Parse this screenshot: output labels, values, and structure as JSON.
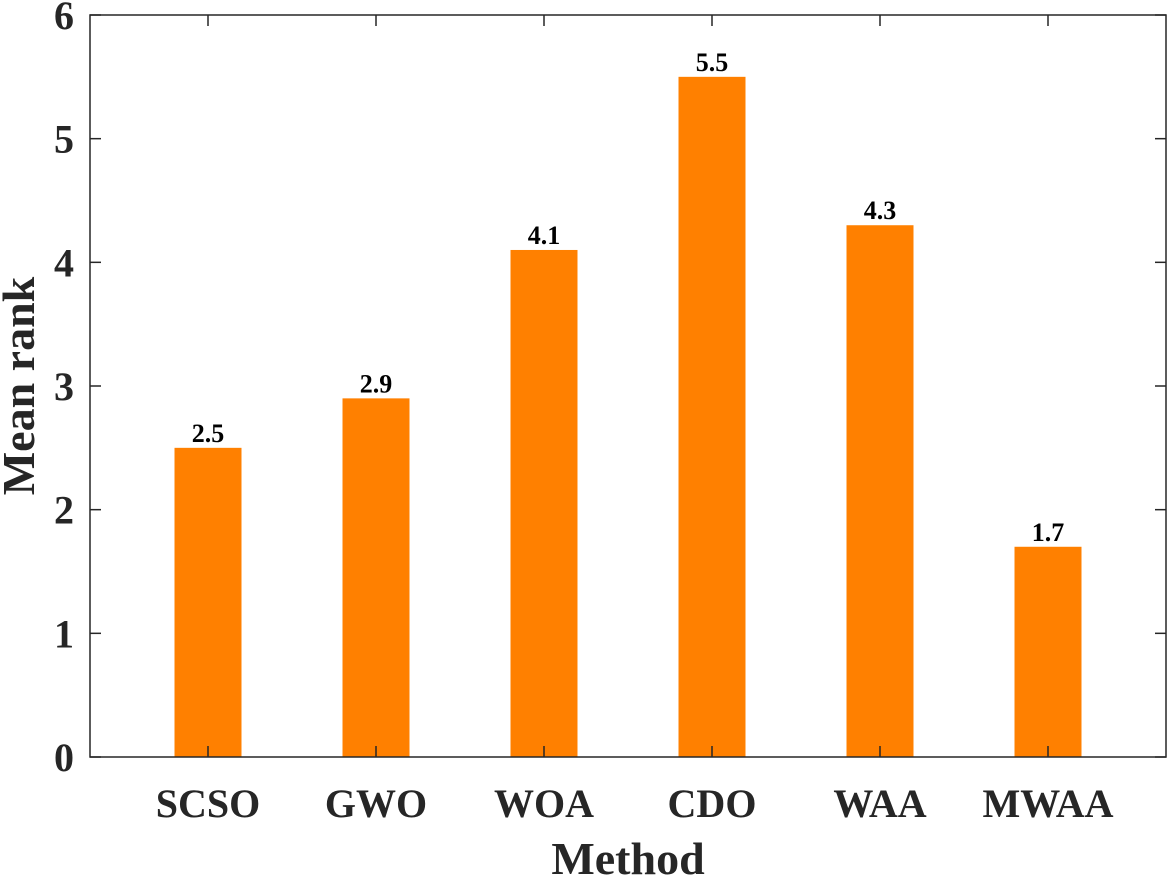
{
  "chart_data": {
    "type": "bar",
    "categories": [
      "SCSO",
      "GWO",
      "WOA",
      "CDO",
      "WAA",
      "MWAA"
    ],
    "values": [
      2.5,
      2.9,
      4.1,
      5.5,
      4.3,
      1.7
    ],
    "data_labels": [
      "2.5",
      "2.9",
      "4.1",
      "5.5",
      "4.3",
      "1.7"
    ],
    "xlabel": "Method",
    "ylabel": "Mean rank",
    "ylim": [
      0,
      6
    ],
    "yticks": [
      "0",
      "1",
      "2",
      "3",
      "4",
      "5",
      "6"
    ],
    "grid": false,
    "legend": "none",
    "bar_color": "#FF8000"
  }
}
